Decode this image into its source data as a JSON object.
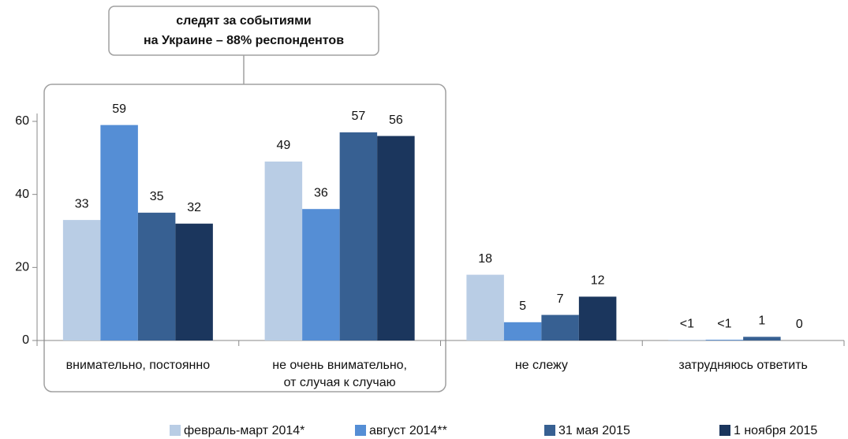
{
  "chart_data": {
    "type": "bar",
    "annotation": [
      "следят за событиями",
      "на Украине – 88% респондентов"
    ],
    "categories": [
      "внимательно, постоянно",
      "не очень внимательно,\nот случая к случаю",
      "не слежу",
      "затрудняюсь ответить"
    ],
    "series": [
      {
        "name": "февраль-март 2014*",
        "color": "#b9cde5",
        "values": [
          33,
          49,
          18,
          0.2
        ],
        "value_labels": [
          "33",
          "49",
          "18",
          "<1"
        ]
      },
      {
        "name": "август 2014**",
        "color": "#558ed5",
        "values": [
          59,
          36,
          5,
          0.2
        ],
        "value_labels": [
          "59",
          "36",
          "5",
          "<1"
        ]
      },
      {
        "name": "31 мая 2015",
        "color": "#376092",
        "values": [
          35,
          57,
          7,
          1
        ]
      },
      {
        "name": "1 ноября 2015",
        "color": "#1b365d",
        "values": [
          32,
          56,
          12,
          0
        ]
      }
    ],
    "ylim": [
      0,
      60
    ],
    "yticks": [
      0,
      20,
      40,
      60
    ],
    "grid": false,
    "legend": "bottom"
  }
}
